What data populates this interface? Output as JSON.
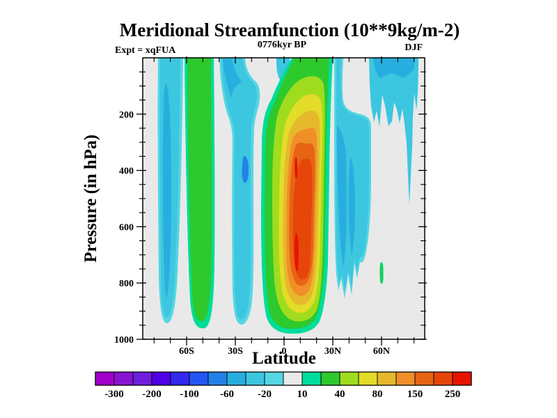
{
  "title": "Meridional Streamfunction (10**9kg/m-2)",
  "annotations": {
    "experiment": "Expt = xqFUA",
    "time": "0776kyr BP",
    "season": "DJF"
  },
  "axes": {
    "y": {
      "label": "Pressure (in hPa)",
      "major_ticks": [
        {
          "label": "200",
          "value": 200
        },
        {
          "label": "400",
          "value": 400
        },
        {
          "label": "600",
          "value": 600
        },
        {
          "label": "800",
          "value": 800
        },
        {
          "label": "1000",
          "value": 1000
        }
      ],
      "minor_step_hPa": 50,
      "range_hPa": [
        0,
        1000
      ],
      "inverted": true
    },
    "x": {
      "label": "Latitude",
      "major_ticks": [
        {
          "label": "60S",
          "value": -60
        },
        {
          "label": "30S",
          "value": -30
        },
        {
          "label": "0",
          "value": 0
        },
        {
          "label": "30N",
          "value": 30
        },
        {
          "label": "60N",
          "value": 60
        }
      ],
      "minor_step_deg": 10,
      "range_deg": [
        -87,
        87
      ]
    }
  },
  "colorbar": {
    "segment_colors": [
      "#A000C8",
      "#8714D2",
      "#6E1EDC",
      "#5000E1",
      "#3228F0",
      "#2355F0",
      "#2382E8",
      "#28AEDE",
      "#3CC6E0",
      "#55D6E3",
      "#E9E9E9",
      "#00DC9B",
      "#2DC92D",
      "#A0DC1E",
      "#E3DC28",
      "#E6B92D",
      "#F08E28",
      "#E66414",
      "#E6460A",
      "#E61400"
    ],
    "labels": [
      "-300",
      "-200",
      "-100",
      "-60",
      "-20",
      "10",
      "40",
      "80",
      "150",
      "250"
    ]
  },
  "palette": {
    "background": "#E9E9E9",
    "frame": "#000000",
    "cyan_light": "#55D6E3",
    "cyan": "#3CC6E0",
    "cyan_med": "#28AEDE",
    "blue": "#2382E8",
    "teal": "#00DC9B",
    "green": "#2DC92D",
    "yellow_green": "#A0DC1E",
    "yellow": "#E3DC28",
    "mustard": "#E6B92D",
    "orange": "#F08E28",
    "dark_orange": "#E66414",
    "red_orange": "#E6460A",
    "red": "#E61400"
  },
  "chart_data": {
    "type": "heatmap",
    "variant": "filled-contour latitude-pressure section",
    "title": "Meridional Streamfunction (10**9kg/m-2)",
    "xlabel": "Latitude",
    "ylabel": "Pressure (in hPa)",
    "x_range_deg": [
      -87,
      87
    ],
    "y_range_hPa": [
      0,
      1000
    ],
    "y_axis_inverted": true,
    "grid": false,
    "legend_position": "horizontal colorbar below plot",
    "units": "10**9 kg/m-2",
    "contour_levels": [
      -300,
      -250,
      -200,
      -150,
      -100,
      -80,
      -60,
      -40,
      -20,
      -10,
      10,
      20,
      40,
      60,
      80,
      100,
      150,
      200,
      250
    ],
    "fill_colors": [
      "#A000C8",
      "#8714D2",
      "#6E1EDC",
      "#5000E1",
      "#3228F0",
      "#2355F0",
      "#2382E8",
      "#28AEDE",
      "#3CC6E0",
      "#55D6E3",
      "#E9E9E9",
      "#00DC9B",
      "#2DC92D",
      "#A0DC1E",
      "#E3DC28",
      "#E6B92D",
      "#F08E28",
      "#E66414",
      "#E6460A",
      "#E61400"
    ],
    "background_value_band": "-10 to 10 (light gray)",
    "features": [
      {
        "name": "hadley-cell-positive",
        "lat_span": "12S to 28N",
        "pressure_span_hPa": [
          0,
          980
        ],
        "core": "8N-13N at 350-800 hPa",
        "peak_value": "greater than 250"
      },
      {
        "name": "sh-ferrel-positive-band",
        "lat_span": "63S to 50S",
        "pressure_span_hPa": [
          0,
          975
        ],
        "peak_value": "20 to 40"
      },
      {
        "name": "sh-polar-negative-band",
        "lat_span": "78S to 66S",
        "pressure_span_hPa": [
          0,
          945
        ],
        "peak_value": "-60 to -20"
      },
      {
        "name": "sh-subtropical-negative-band",
        "lat_span": "40S to 17S",
        "pressure_span_hPa": [
          0,
          950
        ],
        "peak_value": "-80 to -60 spot near 350-450 hPa"
      },
      {
        "name": "equatorial-top-negative-tongue",
        "lat_span": "4S to 3N",
        "pressure_span_hPa": [
          0,
          90
        ],
        "peak_value": "-40 to -20"
      },
      {
        "name": "nh-ferrel-negative-band",
        "lat_span": "31N to 54N",
        "pressure_span_hPa": [
          0,
          860
        ],
        "peak_value": "-60 to -40",
        "note": "jagged W-shaped lower boundary"
      },
      {
        "name": "nh-polar-negative-patch",
        "lat_span": "52N to 83N",
        "pressure_span_hPa": [
          0,
          520
        ],
        "peak_value": "-40 to -20",
        "note": "jagged spiky lower boundary"
      },
      {
        "name": "small-positive-sliver",
        "lat_span": "near 59N",
        "pressure_span_hPa": [
          730,
          800
        ],
        "peak_value": "10 to 40"
      }
    ]
  }
}
